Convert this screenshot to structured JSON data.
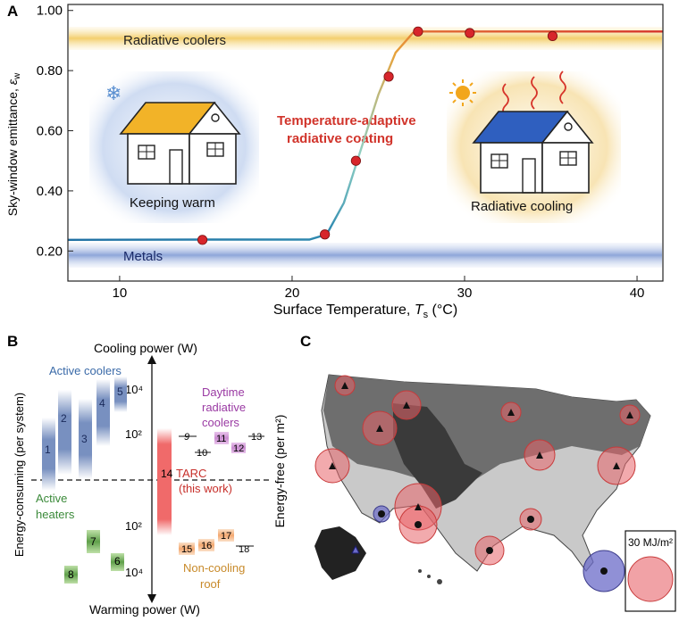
{
  "panels": {
    "a": "A",
    "b": "B",
    "c": "C"
  },
  "panel_a": {
    "band_top": "Radiative coolers",
    "band_bottom": "Metals",
    "coating_line1": "Temperature-adaptive",
    "coating_line2": "radiative coating",
    "house_left_label": "Keeping warm",
    "house_right_label": "Radiative cooling",
    "colors": {
      "curve_cold": "#2f7fa8",
      "curve_mid": "#80c8c0",
      "curve_warm": "#e8a23a",
      "curve_hot": "#d63a2e",
      "points": "#d7262b",
      "band_top": "#f4d27a",
      "band_bottom": "#8ea6d9"
    }
  },
  "panel_b": {
    "ylabel_top": "Cooling power (W)",
    "ylabel_bottom": "Warming power (W)",
    "left_axis_label": "Energy-consuming (per system)",
    "right_axis_label": "Energy-free (per m²)",
    "tick_1e4_top": "10⁴",
    "tick_1e2_top": "10²",
    "tick_1e2_bottom": "10²",
    "tick_1e4_bottom": "10⁴",
    "cat_active_coolers": "Active coolers",
    "cat_daytime_line1": "Daytime",
    "cat_daytime_line2": "radiative",
    "cat_daytime_line3": "coolers",
    "cat_tarc_num": "14",
    "cat_tarc_line1": "TARC",
    "cat_tarc_line2": "(this work)",
    "cat_active_heaters_line1": "Active",
    "cat_active_heaters_line2": "heaters",
    "cat_noncooling_line1": "Non-cooling",
    "cat_noncooling_line2": "roof",
    "items": [
      "1",
      "2",
      "3",
      "4",
      "5",
      "6",
      "7",
      "8",
      "9",
      "10",
      "11",
      "12",
      "13",
      "15",
      "16",
      "17",
      "18"
    ]
  },
  "panel_c": {
    "legend_label": "30 MJ/m²",
    "legend_sup": "2",
    "colors": {
      "savings": "#e8646a",
      "loss": "#6b6bc8",
      "land_dark": "#5a5a5a",
      "land_light": "#d6d6d6"
    }
  },
  "chart_data": [
    {
      "type": "line",
      "title": "",
      "xlabel": "Surface Temperature, Ts (°C)",
      "ylabel": "Sky-window emittance, εw",
      "xlim": [
        7,
        41.5
      ],
      "ylim": [
        0.1,
        1.02
      ],
      "xticks": [
        "10",
        "20",
        "30",
        "40"
      ],
      "yticks": [
        "0.20",
        "0.40",
        "0.60",
        "0.80",
        "1.00"
      ],
      "series": [
        {
          "values_x": [
            7,
            15,
            21,
            22,
            23,
            24,
            25,
            26,
            27,
            27.5,
            30,
            35,
            41.5
          ],
          "values_y": [
            0.237,
            0.238,
            0.238,
            0.255,
            0.36,
            0.54,
            0.72,
            0.86,
            0.925,
            0.93,
            0.93,
            0.93,
            0.93
          ]
        },
        {
          "markers": true,
          "values_x": [
            14.8,
            21.9,
            23.7,
            25.6,
            27.3,
            30.3,
            35.1
          ],
          "values_y": [
            0.237,
            0.255,
            0.5,
            0.78,
            0.93,
            0.925,
            0.915
          ]
        }
      ],
      "bands": [
        {
          "label": "Radiative coolers",
          "y": [
            0.91,
            0.96
          ]
        },
        {
          "label": "Metals",
          "y": [
            0.12,
            0.18
          ]
        }
      ]
    }
  ]
}
